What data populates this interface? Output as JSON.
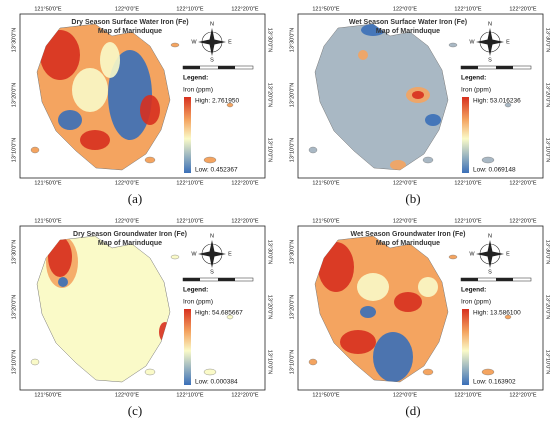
{
  "axes": {
    "lon": [
      "121°50'0\"E",
      "122°0'0\"E",
      "122°10'0\"E",
      "122°20'0\"E"
    ],
    "lat": [
      "13°30'0\"N",
      "13°20'0\"N",
      "13°10'0\"N"
    ]
  },
  "compass": {
    "n": "N",
    "s": "S",
    "e": "E",
    "w": "W"
  },
  "panels": [
    {
      "title": "Dry Season Surface Water Iron (Fe)",
      "subtitle": "Map of Marinduque",
      "legend": "Legend:",
      "unit": "Iron (ppm)",
      "high": "High: 2.761950",
      "low": "Low: 0.452367",
      "label": "(a)"
    },
    {
      "title": "Wet Season Surface Water Iron (Fe)",
      "subtitle": "Map of Marinduque",
      "legend": "Legend:",
      "unit": "Iron (ppm)",
      "high": "High: 53.016236",
      "low": "Low: 0.069148",
      "label": "(b)"
    },
    {
      "title": "Dry Season Groundwater Iron (Fe)",
      "subtitle": "Map of Marinduque",
      "legend": "Legend:",
      "unit": "Iron (ppm)",
      "high": "High: 54.685667",
      "low": "Low: 0.000384",
      "label": "(c)"
    },
    {
      "title": "Wet Season Groundwater Iron (Fe)",
      "subtitle": "Map of Marinduque",
      "legend": "Legend:",
      "unit": "Iron (ppm)",
      "high": "High: 13.586100",
      "low": "Low: 0.163902",
      "label": "(d)"
    }
  ]
}
